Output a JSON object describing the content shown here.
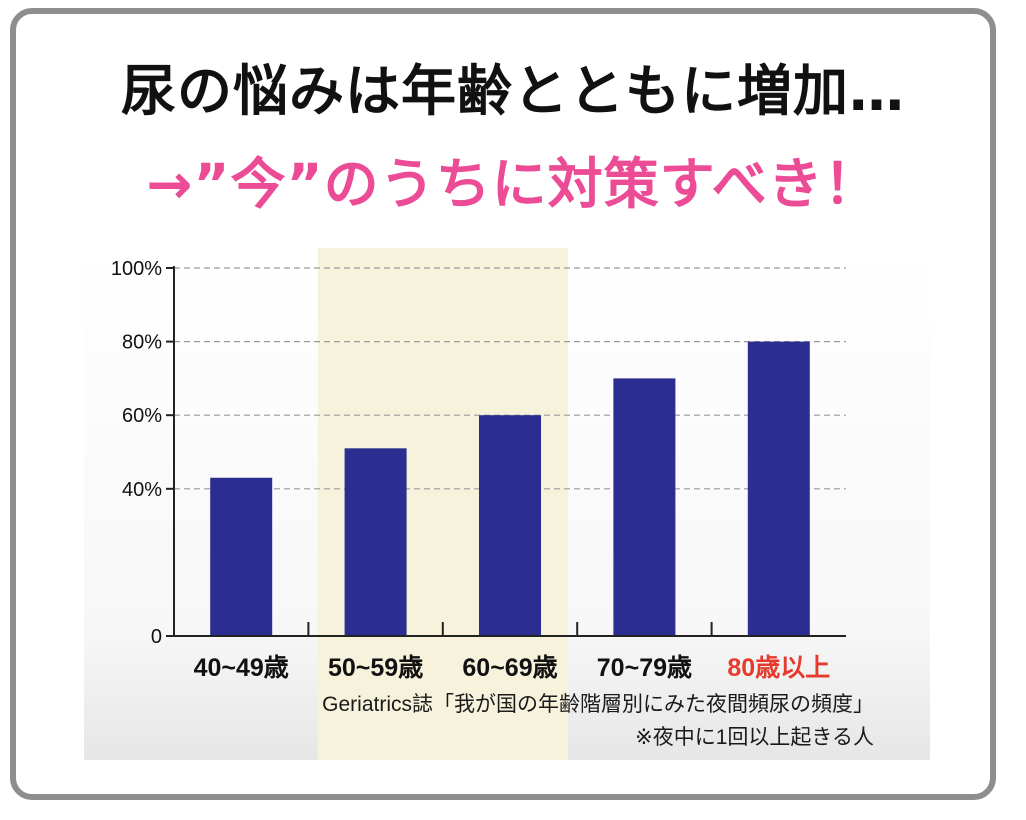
{
  "headline": {
    "line1": "尿の悩みは年齢とともに増加…",
    "line2": "→”今”のうちに対策すべき！"
  },
  "colors": {
    "headline_dark": "#111111",
    "headline_accent": "#ec4c95",
    "bar": "#2b2d91",
    "highlight_band": "#f6f2dc",
    "last_category": "#e53a2c",
    "frame": "#8e8e8e"
  },
  "chart_data": {
    "type": "bar",
    "categories": [
      "40~49歳",
      "50~59歳",
      "60~69歳",
      "70~79歳",
      "80歳以上"
    ],
    "values": [
      43,
      51,
      60,
      70,
      80
    ],
    "y_ticks": [
      {
        "value": 0,
        "label": "0"
      },
      {
        "value": 40,
        "label": "40%"
      },
      {
        "value": 60,
        "label": "60%"
      },
      {
        "value": 80,
        "label": "80%"
      },
      {
        "value": 100,
        "label": "100%"
      }
    ],
    "ylim": [
      0,
      100
    ],
    "grid": true,
    "highlighted_categories": [
      "50~59歳",
      "60~69歳"
    ],
    "emphasized_category": "80歳以上",
    "source": "Geriatrics誌「我が国の年齢階層別にみた夜間頻尿の頻度」",
    "note": "※夜中に1回以上起きる人"
  }
}
